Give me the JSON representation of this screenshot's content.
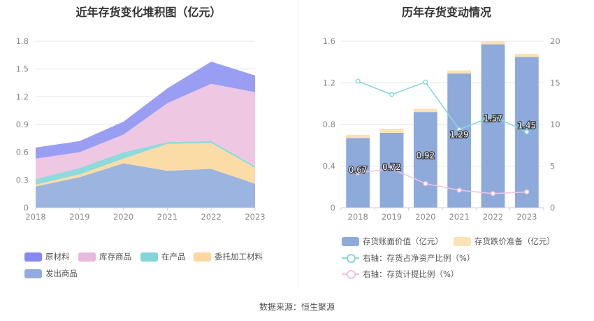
{
  "source_label": "数据来源：恒生聚源",
  "legend_left": [
    "原材料",
    "库存商品",
    "在产品",
    "委托加工材料",
    "发出商品"
  ],
  "legend_right": [
    "存货账面价值（亿元）",
    "存货跌价准备（亿元）",
    "右轴：存货占净资产比例（%）",
    "右轴：存货计提比例（%）"
  ],
  "chart_data": [
    {
      "type": "area",
      "stacked": true,
      "title": "近年存货变化堆积图（亿元）",
      "x": [
        "2018",
        "2019",
        "2020",
        "2021",
        "2022",
        "2023"
      ],
      "ylim": [
        0,
        1.8
      ],
      "y_ticks": [
        "0",
        "0.3",
        "0.6",
        "0.9",
        "1.2",
        "1.5",
        "1.8"
      ],
      "grid": true,
      "legend_position": "bottom",
      "series": [
        {
          "name": "发出商品",
          "color": "#9bb5e0",
          "values": [
            0.23,
            0.33,
            0.48,
            0.4,
            0.42,
            0.26
          ]
        },
        {
          "name": "委托加工材料",
          "color": "#fcdca6",
          "values": [
            0.02,
            0.03,
            0.05,
            0.29,
            0.28,
            0.17
          ]
        },
        {
          "name": "在产品",
          "color": "#8fdadb",
          "values": [
            0.06,
            0.07,
            0.07,
            0.02,
            0.02,
            0.02
          ]
        },
        {
          "name": "库存商品",
          "color": "#eec7e3",
          "values": [
            0.22,
            0.17,
            0.19,
            0.42,
            0.62,
            0.8
          ]
        },
        {
          "name": "原材料",
          "color": "#9a9ef3",
          "values": [
            0.12,
            0.12,
            0.14,
            0.16,
            0.24,
            0.18
          ]
        }
      ]
    },
    {
      "type": "bar",
      "stacked": true,
      "title": "历年存货变动情况",
      "categories": [
        "2018",
        "2019",
        "2020",
        "2021",
        "2022",
        "2023"
      ],
      "ylim": [
        0,
        1.6
      ],
      "y_ticks": [
        "0",
        "0.4",
        "0.8",
        "1.2",
        "1.6"
      ],
      "y2lim": [
        0,
        20
      ],
      "y2_ticks": [
        "0",
        "5",
        "10",
        "15",
        "20"
      ],
      "grid": true,
      "legend_position": "bottom",
      "series": [
        {
          "name": "存货账面价值（亿元）",
          "color": "#8eaadb",
          "values": [
            0.67,
            0.72,
            0.92,
            1.29,
            1.57,
            1.45
          ],
          "labels": [
            "0.67",
            "0.72",
            "0.92",
            "1.29",
            "1.57",
            "1.45"
          ]
        },
        {
          "name": "存货跌价准备（亿元）",
          "color": "#fce2b4",
          "values": [
            0.03,
            0.04,
            0.03,
            0.03,
            0.03,
            0.03
          ]
        },
        {
          "name": "右轴：存货占净资产比例（%）",
          "type": "line",
          "axis": "right",
          "color": "#88d8d8",
          "values": [
            15.2,
            13.6,
            15.1,
            9.4,
            11.0,
            9.1
          ]
        },
        {
          "name": "右轴：存货计提比例（%）",
          "type": "line",
          "axis": "right",
          "color": "#f0c3e2",
          "values": [
            4.2,
            4.7,
            2.9,
            2.1,
            1.7,
            1.9
          ]
        }
      ]
    }
  ]
}
